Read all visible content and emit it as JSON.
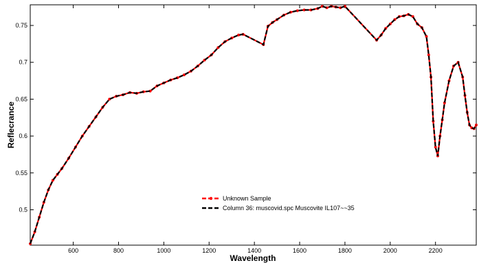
{
  "chart_data": {
    "type": "line",
    "title": "",
    "xlabel": "Wavelength",
    "ylabel": "Reflecrance",
    "xlim": [
      410,
      2380
    ],
    "ylim": [
      0.452,
      0.778
    ],
    "xticks": [
      600,
      800,
      1000,
      1200,
      1400,
      1600,
      1800,
      2000,
      2200
    ],
    "yticks": [
      0.5,
      0.55,
      0.6,
      0.65,
      0.7,
      0.75
    ],
    "xtick_labels": [
      "600",
      "800",
      "1000",
      "1200",
      "1400",
      "1600",
      "1800",
      "2000",
      "2200"
    ],
    "ytick_labels": [
      "0.5",
      "0.55",
      "0.6",
      "0.65",
      "0.7",
      "0.75"
    ],
    "grid": false,
    "legend_position": "center",
    "series": [
      {
        "name": "Unknown Sample",
        "color": "#ff0000",
        "style": "dashed-with-markers",
        "x": [
          410,
          430,
          450,
          470,
          490,
          510,
          530,
          550,
          580,
          610,
          640,
          670,
          700,
          730,
          760,
          790,
          820,
          850,
          880,
          910,
          940,
          970,
          1000,
          1030,
          1060,
          1090,
          1120,
          1150,
          1180,
          1210,
          1240,
          1270,
          1300,
          1330,
          1350,
          1440,
          1460,
          1480,
          1500,
          1530,
          1560,
          1590,
          1620,
          1650,
          1680,
          1700,
          1720,
          1740,
          1760,
          1780,
          1800,
          1940,
          1960,
          1980,
          2000,
          2020,
          2040,
          2060,
          2080,
          2100,
          2120,
          2140,
          2160,
          2170,
          2180,
          2190,
          2200,
          2210,
          2220,
          2230,
          2240,
          2260,
          2280,
          2300,
          2320,
          2330,
          2340,
          2350,
          2360,
          2370,
          2380
        ],
        "y": [
          0.454,
          0.47,
          0.49,
          0.51,
          0.527,
          0.54,
          0.548,
          0.556,
          0.57,
          0.585,
          0.6,
          0.613,
          0.626,
          0.639,
          0.65,
          0.654,
          0.656,
          0.659,
          0.658,
          0.66,
          0.661,
          0.668,
          0.672,
          0.676,
          0.679,
          0.683,
          0.688,
          0.695,
          0.703,
          0.71,
          0.72,
          0.728,
          0.733,
          0.737,
          0.738,
          0.724,
          0.749,
          0.754,
          0.758,
          0.764,
          0.768,
          0.77,
          0.771,
          0.771,
          0.773,
          0.776,
          0.774,
          0.776,
          0.775,
          0.774,
          0.776,
          0.73,
          0.737,
          0.746,
          0.752,
          0.758,
          0.762,
          0.763,
          0.765,
          0.762,
          0.752,
          0.747,
          0.735,
          0.71,
          0.68,
          0.62,
          0.585,
          0.573,
          0.6,
          0.622,
          0.645,
          0.675,
          0.695,
          0.7,
          0.68,
          0.655,
          0.632,
          0.615,
          0.611,
          0.61,
          0.615
        ]
      },
      {
        "name": "Column 36: muscovid.spc Muscovite IL107~~35",
        "color": "#000000",
        "style": "dashed",
        "x": [
          410,
          430,
          450,
          470,
          490,
          510,
          530,
          550,
          580,
          610,
          640,
          670,
          700,
          730,
          760,
          790,
          820,
          850,
          880,
          910,
          940,
          970,
          1000,
          1030,
          1060,
          1090,
          1120,
          1150,
          1180,
          1210,
          1240,
          1270,
          1300,
          1330,
          1350,
          1440,
          1460,
          1480,
          1500,
          1530,
          1560,
          1590,
          1620,
          1650,
          1680,
          1700,
          1720,
          1740,
          1760,
          1780,
          1800,
          1940,
          1960,
          1980,
          2000,
          2020,
          2040,
          2060,
          2080,
          2100,
          2120,
          2140,
          2160,
          2170,
          2180,
          2190,
          2200,
          2210,
          2220,
          2230,
          2240,
          2260,
          2280,
          2300,
          2320,
          2330,
          2340,
          2350,
          2360,
          2370,
          2380
        ],
        "y": [
          0.454,
          0.47,
          0.49,
          0.51,
          0.527,
          0.54,
          0.548,
          0.556,
          0.57,
          0.585,
          0.6,
          0.613,
          0.626,
          0.639,
          0.65,
          0.654,
          0.656,
          0.659,
          0.658,
          0.66,
          0.661,
          0.668,
          0.672,
          0.676,
          0.679,
          0.683,
          0.688,
          0.695,
          0.703,
          0.71,
          0.72,
          0.728,
          0.733,
          0.737,
          0.738,
          0.724,
          0.749,
          0.754,
          0.758,
          0.764,
          0.768,
          0.77,
          0.771,
          0.771,
          0.773,
          0.776,
          0.774,
          0.776,
          0.775,
          0.774,
          0.776,
          0.73,
          0.737,
          0.746,
          0.752,
          0.758,
          0.762,
          0.763,
          0.765,
          0.762,
          0.752,
          0.747,
          0.735,
          0.71,
          0.68,
          0.62,
          0.585,
          0.573,
          0.6,
          0.622,
          0.645,
          0.675,
          0.695,
          0.7,
          0.68,
          0.655,
          0.632,
          0.615,
          0.611,
          0.61,
          0.615
        ]
      }
    ]
  }
}
